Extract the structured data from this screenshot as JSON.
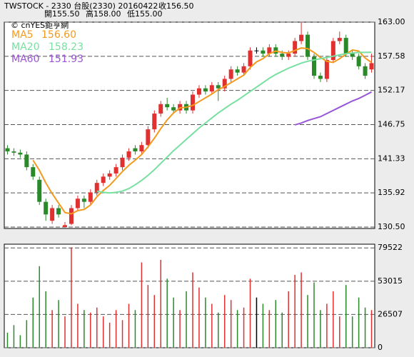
{
  "chart_data": [
    {
      "type": "candlestick",
      "title": "TWSTOCK - 2330 台股(2330) 20160422",
      "close_label": "收156.50",
      "open_label": "開155.50",
      "high_label": "高158.00",
      "low_label": "低155.00",
      "watermark": "© cnYES鉅亨網",
      "up_color": "#e0302f",
      "down_color": "#2a8a2a",
      "flat_color": "#000000",
      "open": [
        143,
        142.5,
        142.3,
        142,
        140,
        138,
        134.5,
        131.5,
        133.5,
        130.5,
        131,
        133.5,
        135,
        134.5,
        136,
        137.5,
        138.5,
        139,
        140,
        141.5,
        143,
        142.5,
        143.5,
        146,
        148.5,
        150,
        149.5,
        149,
        150,
        149,
        151.5,
        152.5,
        152,
        153,
        152.5,
        154,
        155.5,
        155,
        156,
        158.5,
        158.5,
        158,
        159,
        158,
        157.5,
        158,
        160,
        161,
        157.5,
        154.5,
        154,
        157,
        160,
        160.5,
        158,
        157.5,
        156,
        155.5
      ],
      "high": [
        143.5,
        143,
        142.8,
        142.5,
        140.5,
        138.5,
        135,
        134,
        134,
        131.3,
        134,
        135.5,
        135.5,
        136.5,
        138,
        139,
        139.5,
        140.5,
        142,
        143,
        143.5,
        144,
        146.5,
        149,
        150.5,
        151,
        150,
        150.5,
        150.5,
        152,
        153,
        153,
        153.5,
        153.5,
        154.5,
        156,
        156,
        156.5,
        159,
        159,
        159,
        159.5,
        159.5,
        158.5,
        158.5,
        160.5,
        163,
        161.5,
        158,
        155,
        157.5,
        160.5,
        161.5,
        161,
        158.5,
        158,
        156.5,
        158
      ],
      "low": [
        142,
        141.8,
        141.5,
        139.5,
        138,
        134,
        131.5,
        131,
        132,
        130.5,
        130.8,
        133,
        133.5,
        134,
        135.5,
        137,
        138,
        138.5,
        139.5,
        141,
        142,
        142,
        143,
        145.5,
        148,
        149,
        148.5,
        148.5,
        148.5,
        148.5,
        151,
        151.5,
        151.5,
        150.5,
        152,
        153.5,
        154.5,
        154.5,
        155.5,
        158,
        157.5,
        157.5,
        157.5,
        157,
        157,
        157.5,
        159.5,
        157,
        154,
        153.5,
        153.5,
        156.5,
        159.5,
        157.5,
        157,
        155.5,
        154,
        155
      ],
      "close": [
        142.5,
        142.3,
        142,
        140,
        138.5,
        134.5,
        132.5,
        133.5,
        132.5,
        130.8,
        133.5,
        135,
        134.5,
        136,
        137.5,
        138.5,
        139,
        140,
        141.5,
        142.5,
        142.5,
        143.5,
        146,
        148.5,
        150,
        149.5,
        149,
        150,
        149,
        151.5,
        152.5,
        152,
        153,
        152.5,
        154,
        155.5,
        155,
        156,
        158.5,
        158.5,
        158,
        159,
        158,
        157.5,
        158,
        160,
        161,
        157.5,
        154.5,
        154,
        157,
        160,
        160.5,
        158,
        157.5,
        156,
        154.5,
        156.5
      ],
      "series": [
        {
          "name": "MA5",
          "color": "#f39a1e",
          "value_label": "156.60",
          "values": [
            null,
            null,
            null,
            null,
            141.1,
            139.5,
            137.5,
            135.8,
            134.3,
            132.8,
            132.6,
            133.1,
            133.3,
            134.0,
            135.3,
            136.3,
            137.1,
            138.2,
            139.3,
            140.3,
            141.1,
            142.0,
            143.2,
            144.6,
            146.1,
            147.5,
            148.6,
            149.4,
            149.5,
            149.8,
            150.4,
            151.0,
            151.6,
            152.3,
            152.8,
            153.4,
            154.0,
            154.6,
            155.8,
            156.7,
            157.2,
            158.0,
            158.4,
            158.2,
            158.1,
            158.5,
            158.9,
            158.8,
            158.2,
            157.4,
            156.8,
            156.6,
            157.2,
            157.9,
            158.6,
            158.4,
            157.3,
            156.6
          ]
        },
        {
          "name": "MA20",
          "color": "#78e0a0",
          "value_label": "158.23",
          "values": [
            null,
            null,
            null,
            null,
            null,
            null,
            null,
            null,
            null,
            null,
            null,
            null,
            null,
            null,
            136.2,
            136.0,
            135.9,
            136.0,
            136.2,
            136.6,
            137.2,
            137.9,
            138.7,
            139.6,
            140.6,
            141.6,
            142.6,
            143.5,
            144.4,
            145.3,
            146.2,
            147.0,
            147.8,
            148.6,
            149.3,
            150.0,
            150.6,
            151.3,
            152.0,
            152.7,
            153.4,
            154.1,
            154.7,
            155.2,
            155.7,
            156.1,
            156.5,
            156.8,
            157.0,
            157.2,
            157.4,
            157.6,
            157.8,
            158.0,
            158.1,
            158.2,
            158.2,
            158.23
          ]
        },
        {
          "name": "MA60",
          "color": "#9a55d6",
          "value_label": "151.93",
          "values": [
            null,
            null,
            null,
            null,
            null,
            null,
            null,
            null,
            null,
            null,
            null,
            null,
            null,
            null,
            null,
            null,
            null,
            null,
            null,
            null,
            null,
            null,
            null,
            null,
            null,
            null,
            null,
            null,
            null,
            null,
            null,
            null,
            null,
            null,
            null,
            null,
            null,
            null,
            null,
            null,
            null,
            null,
            null,
            null,
            null,
            146.7,
            147.0,
            147.4,
            147.7,
            148.0,
            148.5,
            149.0,
            149.5,
            150.0,
            150.5,
            150.9,
            151.4,
            151.93
          ]
        }
      ],
      "ylim": [
        130.5,
        163
      ],
      "yticks": [
        {
          "value": 130.5,
          "label": "130.50"
        },
        {
          "value": 135.92,
          "label": "135.92"
        },
        {
          "value": 141.33,
          "label": "141.33"
        },
        {
          "value": 146.75,
          "label": "146.75"
        },
        {
          "value": 152.17,
          "label": "152.17"
        },
        {
          "value": 157.58,
          "label": "157.58"
        },
        {
          "value": 163,
          "label": "163.00"
        }
      ],
      "grid": true
    },
    {
      "type": "bar",
      "values": [
        12000,
        18000,
        10000,
        22000,
        40000,
        65000,
        45000,
        30000,
        38000,
        25000,
        80000,
        35000,
        30000,
        28000,
        32000,
        25000,
        20000,
        30000,
        22000,
        35000,
        30000,
        68000,
        50000,
        42000,
        70000,
        55000,
        40000,
        30000,
        45000,
        60000,
        48000,
        40000,
        35000,
        28000,
        42000,
        38000,
        30000,
        32000,
        55000,
        40000,
        35000,
        30000,
        38000,
        28000,
        45000,
        58000,
        60000,
        42000,
        52000,
        30000,
        35000,
        45000,
        25000,
        50000,
        25000,
        40000,
        32000,
        30000
      ],
      "ylim": [
        0,
        82500
      ],
      "yticks": [
        0,
        26507,
        53015,
        79522
      ],
      "grid": true
    }
  ]
}
